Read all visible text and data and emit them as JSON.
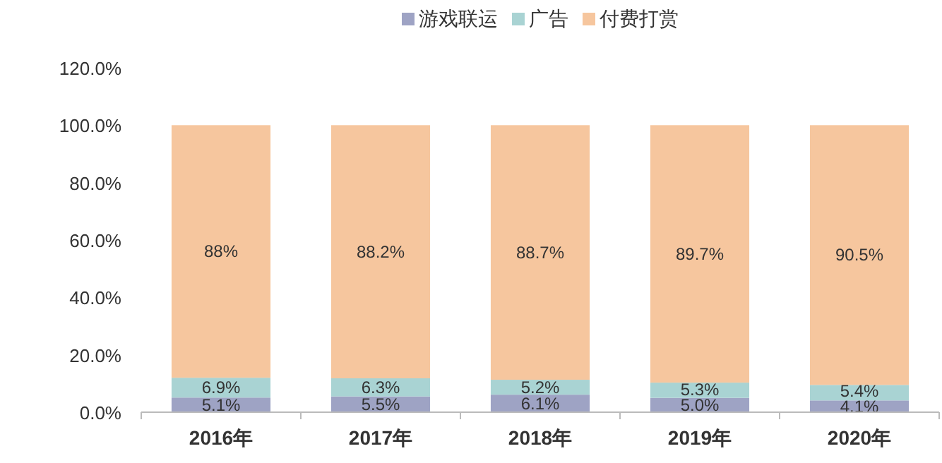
{
  "chart_data": {
    "type": "bar",
    "stacked": true,
    "legend": "top",
    "categories": [
      "2016年",
      "2017年",
      "2018年",
      "2019年",
      "2020年"
    ],
    "series": [
      {
        "name": "游戏联运",
        "color": "#9ea3c4",
        "values": [
          5.1,
          5.5,
          6.1,
          5.0,
          4.1
        ],
        "value_labels": [
          "5.1%",
          "5.5%",
          "6.1%",
          "5.0%",
          "4.1%"
        ]
      },
      {
        "name": "广告",
        "color": "#a9d3d3",
        "values": [
          6.9,
          6.3,
          5.2,
          5.3,
          5.4
        ],
        "value_labels": [
          "6.9%",
          "6.3%",
          "5.2%",
          "5.3%",
          "5.4%"
        ]
      },
      {
        "name": "付费打赏",
        "color": "#f6c69e",
        "values": [
          88,
          88.2,
          88.7,
          89.7,
          90.5
        ],
        "value_labels": [
          "88%",
          "88.2%",
          "88.7%",
          "89.7%",
          "90.5%"
        ]
      }
    ],
    "ylim": [
      0,
      120
    ],
    "yticks": [
      {
        "value": 0,
        "label": "0.0%"
      },
      {
        "value": 20,
        "label": "20.0%"
      },
      {
        "value": 40,
        "label": "40.0%"
      },
      {
        "value": 60,
        "label": "60.0%"
      },
      {
        "value": 80,
        "label": "80.0%"
      },
      {
        "value": 100,
        "label": "100.0%"
      },
      {
        "value": 120,
        "label": "120.0%"
      }
    ]
  }
}
